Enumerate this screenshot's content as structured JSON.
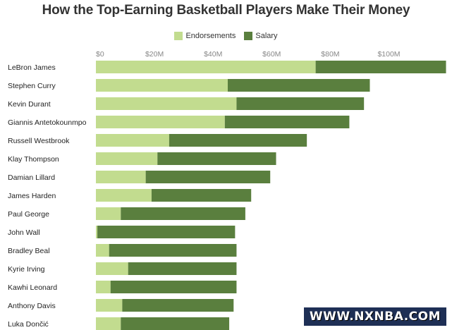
{
  "chart_data": {
    "type": "bar",
    "orientation": "horizontal",
    "stacked": true,
    "title": "How the Top-Earning Basketball Players Make Their Money",
    "legend": [
      "Endorsements",
      "Salary"
    ],
    "legend_position": "top-center",
    "x_tick_labels": [
      "$0",
      "$20M",
      "$40M",
      "$60M",
      "$80M",
      "$100M"
    ],
    "x_ticks": [
      0,
      20,
      40,
      60,
      80,
      100
    ],
    "xlim": [
      0,
      120
    ],
    "grid": false,
    "categories": [
      "LeBron James",
      "Stephen Curry",
      "Kevin Durant",
      "Giannis Antetokounmpo",
      "Russell Westbrook",
      "Klay Thompson",
      "Damian Lillard",
      "James Harden",
      "Paul George",
      "John Wall",
      "Bradley Beal",
      "Kyrie Irving",
      "Kawhi Leonard",
      "Anthony Davis",
      "Luka Dončić"
    ],
    "series": [
      {
        "name": "Endorsements",
        "color": "#c2dc8f",
        "values": [
          75,
          45,
          48,
          44,
          25,
          21,
          17,
          19,
          8.5,
          0.5,
          4.5,
          11,
          5,
          9,
          8.5
        ]
      },
      {
        "name": "Salary",
        "color": "#5a7f3e",
        "values": [
          44.5,
          48.5,
          43.5,
          42.5,
          47,
          40.5,
          42.5,
          34,
          42.5,
          47,
          43.5,
          37,
          43,
          38,
          37
        ]
      }
    ]
  },
  "watermark": "WWW.NXNBA.COM"
}
